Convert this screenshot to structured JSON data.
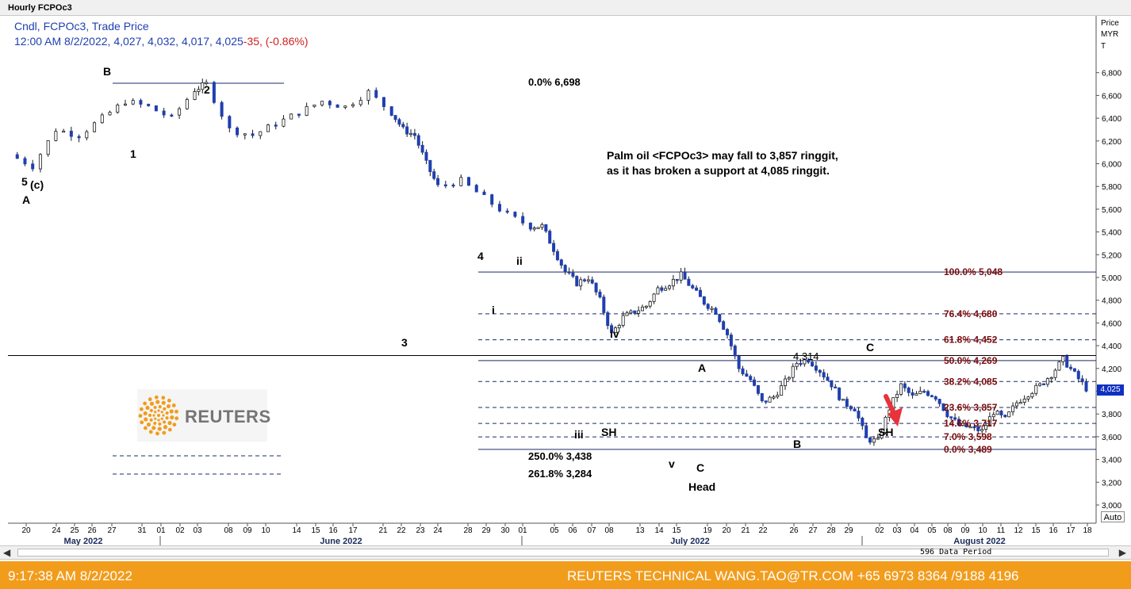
{
  "window": {
    "title": "Hourly FCPOc3"
  },
  "legend": {
    "series": "Cndl, FCPOc3, Trade Price",
    "ohlc": "12:00 AM 8/2/2022, 4,027, 4,032, 4,017, 4,025",
    "change": "-35",
    "change_pct": ", (-0.86%)"
  },
  "axis": {
    "label_line1": "Price",
    "label_line2": "MYR",
    "label_line3": "T"
  },
  "annotation": {
    "line1": "Palm oil <FCPOc3> may fall to 3,857 ringgit,",
    "line2": "as it has  broken a support at 4,085 ringgit."
  },
  "chart_data": {
    "type": "candlestick",
    "title": "Hourly FCPOc3",
    "ylabel": "Price MYR T",
    "ylim": [
      2900,
      7000
    ],
    "yticks": [
      3000,
      3200,
      3400,
      3600,
      3800,
      4000,
      4200,
      4400,
      4600,
      4800,
      5000,
      5200,
      5400,
      5600,
      5800,
      6000,
      6200,
      6400,
      6600,
      6800
    ],
    "ytick_labels": [
      "3,000",
      "3,200",
      "3,400",
      "3,600",
      "3,800",
      "4,000",
      "4,200",
      "4,400",
      "4,600",
      "4,800",
      "5,000",
      "5,200",
      "5,400",
      "5,600",
      "5,800",
      "6,000",
      "6,200",
      "6,400",
      "6,600",
      "6,800"
    ],
    "x_day_labels": [
      "20",
      "24",
      "25",
      "26",
      "27",
      "31",
      "01",
      "02",
      "03",
      "08",
      "09",
      "10",
      "14",
      "15",
      "16",
      "17",
      "21",
      "22",
      "23",
      "24",
      "28",
      "29",
      "30",
      "01",
      "05",
      "06",
      "07",
      "08",
      "13",
      "14",
      "15",
      "19",
      "20",
      "21",
      "22",
      "26",
      "27",
      "28",
      "29",
      "02",
      "03",
      "04",
      "05",
      "08",
      "09",
      "10",
      "11",
      "12",
      "15",
      "16",
      "17",
      "18"
    ],
    "months": [
      "May 2022",
      "June 2022",
      "July 2022",
      "August 2022"
    ],
    "price_path": [
      [
        0,
        6080
      ],
      [
        2,
        5980
      ],
      [
        4,
        6300
      ],
      [
        6,
        6250
      ],
      [
        8,
        6400
      ],
      [
        10,
        6550
      ],
      [
        12,
        6500
      ],
      [
        14,
        6400
      ],
      [
        16,
        6650
      ],
      [
        17,
        6700
      ],
      [
        19,
        6300
      ],
      [
        21,
        6250
      ],
      [
        23,
        6350
      ],
      [
        25,
        6450
      ],
      [
        27,
        6550
      ],
      [
        29,
        6500
      ],
      [
        31,
        6630
      ],
      [
        33,
        6450
      ],
      [
        34,
        6300
      ],
      [
        35,
        6250
      ],
      [
        36,
        6000
      ],
      [
        37,
        5800
      ],
      [
        39,
        5850
      ],
      [
        41,
        5700
      ],
      [
        43,
        5550
      ],
      [
        45,
        5450
      ],
      [
        46,
        5450
      ],
      [
        47,
        5250
      ],
      [
        48,
        5050
      ],
      [
        49,
        4950
      ],
      [
        50,
        5000
      ],
      [
        51,
        4800
      ],
      [
        52,
        4500
      ],
      [
        53,
        4650
      ],
      [
        54,
        4700
      ],
      [
        55,
        4750
      ],
      [
        56,
        4900
      ],
      [
        57,
        4950
      ],
      [
        58,
        5020
      ],
      [
        59,
        4900
      ],
      [
        60,
        4780
      ],
      [
        61,
        4700
      ],
      [
        62,
        4500
      ],
      [
        63,
        4200
      ],
      [
        64,
        4100
      ],
      [
        65,
        3900
      ],
      [
        66,
        3950
      ],
      [
        67,
        4080
      ],
      [
        68,
        4250
      ],
      [
        69,
        4280
      ],
      [
        70,
        4180
      ],
      [
        71,
        4060
      ],
      [
        72,
        3900
      ],
      [
        73,
        3850
      ],
      [
        74,
        3580
      ],
      [
        75,
        3560
      ],
      [
        76,
        3850
      ],
      [
        77,
        4050
      ],
      [
        78,
        3950
      ],
      [
        79,
        4000
      ],
      [
        80,
        3950
      ],
      [
        81,
        3800
      ],
      [
        82,
        3700
      ],
      [
        83,
        3680
      ],
      [
        84,
        3650
      ],
      [
        85,
        3820
      ],
      [
        86,
        3750
      ],
      [
        87,
        3900
      ],
      [
        88,
        3980
      ],
      [
        89,
        4050
      ],
      [
        90,
        4150
      ],
      [
        91,
        4280
      ],
      [
        92,
        4150
      ],
      [
        93,
        4025
      ]
    ],
    "fib_levels": [
      {
        "label": "100.0%",
        "value": 5048,
        "text": "5,048"
      },
      {
        "label": "76.4%",
        "value": 4680,
        "text": "4,680"
      },
      {
        "label": "61.8%",
        "value": 4452,
        "text": "4,452"
      },
      {
        "label": "50.0%",
        "value": 4269,
        "text": "4,269"
      },
      {
        "label": "38.2%",
        "value": 4085,
        "text": "4,085"
      },
      {
        "label": "23.6%",
        "value": 3857,
        "text": "3,857"
      },
      {
        "label": "14.6%",
        "value": 3717,
        "text": "3,717"
      },
      {
        "label": "7.0%",
        "value": 3598,
        "text": "3,598"
      },
      {
        "label": "0.0%",
        "value": 3489,
        "text": "3,489"
      }
    ],
    "ext_levels": [
      {
        "label": "0.0%",
        "value": 6698,
        "text": "6,698"
      },
      {
        "label": "250.0%",
        "value": 3438,
        "text": "3,438"
      },
      {
        "label": "261.8%",
        "value": 3284,
        "text": "3,284"
      }
    ],
    "marker_4314": "4,314",
    "last_price": "4,025",
    "wave_labels": [
      "5",
      "(c)",
      "A",
      "B",
      "1",
      "2",
      "3",
      "4",
      "ii",
      "i",
      "iv",
      "iii",
      "SH",
      "v",
      "C",
      "Head",
      "A",
      "B",
      "C",
      "SH"
    ]
  },
  "scrollbar": {
    "left_arrow": "◀",
    "right_arrow": "▶",
    "period": "596 Data Period"
  },
  "controls": {
    "auto": "Auto"
  },
  "logo": {
    "text": "REUTERS"
  },
  "footer": {
    "time": "9:17:38 AM 8/2/2022",
    "contact": "REUTERS TECHNICAL  WANG.TAO@TR.COM  +65 6973 8364 /9188 4196"
  },
  "colors": {
    "candle": "#1f3fb0",
    "fib_text": "#7a0a0a",
    "footer": "#f29c1c",
    "arrow": "#e8333a"
  }
}
